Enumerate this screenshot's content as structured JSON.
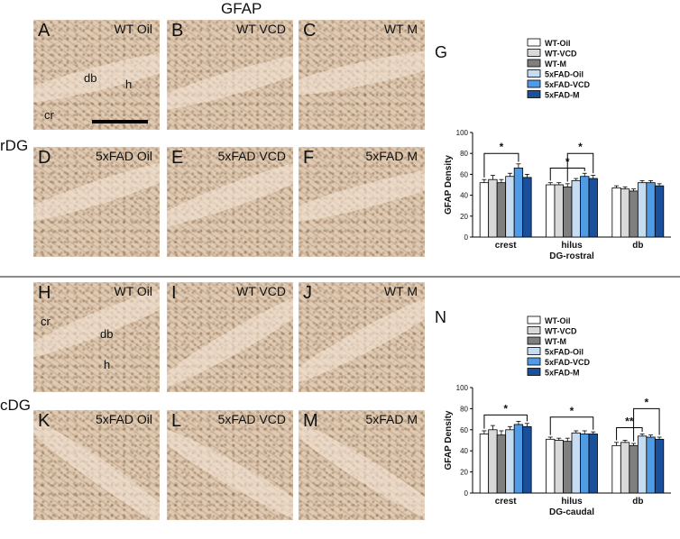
{
  "header": {
    "title": "GFAP"
  },
  "rows": {
    "top": "rDG",
    "bottom": "cDG"
  },
  "panels": [
    {
      "letter": "A",
      "condition": "WT Oil"
    },
    {
      "letter": "B",
      "condition": "WT VCD"
    },
    {
      "letter": "C",
      "condition": "WT M"
    },
    {
      "letter": "D",
      "condition": "5xFAD Oil"
    },
    {
      "letter": "E",
      "condition": "5xFAD VCD"
    },
    {
      "letter": "F",
      "condition": "5xFAD M"
    },
    {
      "letter": "H",
      "condition": "WT Oil"
    },
    {
      "letter": "I",
      "condition": "WT VCD"
    },
    {
      "letter": "J",
      "condition": "WT M"
    },
    {
      "letter": "K",
      "condition": "5xFAD Oil"
    },
    {
      "letter": "L",
      "condition": "5xFAD VCD"
    },
    {
      "letter": "M",
      "condition": "5xFAD M"
    }
  ],
  "region_labels": {
    "db": "db",
    "h": "h",
    "cr": "cr"
  },
  "chart_data": [
    {
      "type": "bar",
      "panel_letter": "G",
      "categories": [
        "crest",
        "hilus",
        "db"
      ],
      "xlabel": "DG-rostral",
      "ylabel": "GFAP Density",
      "ylim": [
        0,
        100
      ],
      "yticks": [
        0,
        20,
        40,
        60,
        80,
        100
      ],
      "series": [
        {
          "name": "WT-Oil",
          "color": "#ffffff",
          "values": [
            52,
            50,
            47
          ],
          "errors": [
            3,
            2,
            2
          ]
        },
        {
          "name": "WT-VCD",
          "color": "#d9d9d9",
          "values": [
            55,
            50,
            46
          ],
          "errors": [
            4,
            2,
            2
          ]
        },
        {
          "name": "WT-M",
          "color": "#7f7f7f",
          "values": [
            52,
            48,
            44
          ],
          "errors": [
            3,
            3,
            2
          ]
        },
        {
          "name": "5xFAD-Oil",
          "color": "#c6dcf2",
          "values": [
            58,
            54,
            52
          ],
          "errors": [
            3,
            2,
            2
          ]
        },
        {
          "name": "5xFAD-VCD",
          "color": "#4f9be6",
          "values": [
            66,
            58,
            52
          ],
          "errors": [
            4,
            3,
            2
          ]
        },
        {
          "name": "5xFAD-M",
          "color": "#1a4f9c",
          "values": [
            57,
            56,
            49
          ],
          "errors": [
            3,
            3,
            2
          ]
        }
      ],
      "significance": [
        {
          "group": 0,
          "from": 0,
          "to": 4,
          "label": "*",
          "level": 80
        },
        {
          "group": 1,
          "from": 0,
          "to": 4,
          "label": "*",
          "level": 66
        },
        {
          "group": 1,
          "from": 2,
          "to": 5,
          "label": "*",
          "level": 80
        }
      ]
    },
    {
      "type": "bar",
      "panel_letter": "N",
      "categories": [
        "crest",
        "hilus",
        "db"
      ],
      "xlabel": "DG-caudal",
      "ylabel": "GFAP Density",
      "ylim": [
        0,
        100
      ],
      "yticks": [
        0,
        20,
        40,
        60,
        80,
        100
      ],
      "series": [
        {
          "name": "WT-Oil",
          "color": "#ffffff",
          "values": [
            56,
            51,
            45
          ],
          "errors": [
            3,
            2,
            3
          ]
        },
        {
          "name": "WT-VCD",
          "color": "#d9d9d9",
          "values": [
            60,
            50,
            48
          ],
          "errors": [
            4,
            2,
            2
          ]
        },
        {
          "name": "WT-M",
          "color": "#7f7f7f",
          "values": [
            55,
            49,
            45
          ],
          "errors": [
            4,
            3,
            2
          ]
        },
        {
          "name": "5xFAD-Oil",
          "color": "#c6dcf2",
          "values": [
            60,
            57,
            54
          ],
          "errors": [
            3,
            2,
            2
          ]
        },
        {
          "name": "5xFAD-VCD",
          "color": "#4f9be6",
          "values": [
            65,
            56,
            53
          ],
          "errors": [
            3,
            3,
            2
          ]
        },
        {
          "name": "5xFAD-M",
          "color": "#1a4f9c",
          "values": [
            63,
            56,
            51
          ],
          "errors": [
            3,
            2,
            2
          ]
        }
      ],
      "significance": [
        {
          "group": 0,
          "from": 0,
          "to": 5,
          "label": "*",
          "level": 74
        },
        {
          "group": 1,
          "from": 0,
          "to": 5,
          "label": "*",
          "level": 72
        },
        {
          "group": 2,
          "from": 0,
          "to": 3,
          "label": "**",
          "level": 62
        },
        {
          "group": 2,
          "from": 2,
          "to": 5,
          "label": "*",
          "level": 80
        }
      ]
    }
  ]
}
